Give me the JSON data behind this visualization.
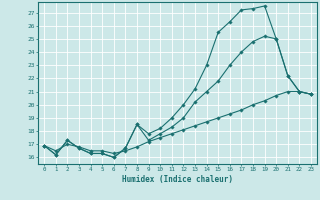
{
  "xlabel": "Humidex (Indice chaleur)",
  "xlim": [
    -0.5,
    23.5
  ],
  "ylim": [
    15.5,
    27.8
  ],
  "yticks": [
    16,
    17,
    18,
    19,
    20,
    21,
    22,
    23,
    24,
    25,
    26,
    27
  ],
  "xticks": [
    0,
    1,
    2,
    3,
    4,
    5,
    6,
    7,
    8,
    9,
    10,
    11,
    12,
    13,
    14,
    15,
    16,
    17,
    18,
    19,
    20,
    21,
    22,
    23
  ],
  "line_color": "#1a7070",
  "bg_color": "#cce8e8",
  "grid_color": "#ffffff",
  "line1_x": [
    0,
    1,
    2,
    3,
    4,
    5,
    6,
    7,
    8,
    9,
    10,
    11,
    12,
    13,
    14,
    15,
    16,
    17,
    18,
    19,
    20,
    21,
    22,
    23
  ],
  "line1_y": [
    16.9,
    16.2,
    17.3,
    16.7,
    16.3,
    16.3,
    16.0,
    16.7,
    18.5,
    17.8,
    18.2,
    19.0,
    20.0,
    21.2,
    23.0,
    25.5,
    26.3,
    27.2,
    27.3,
    27.5,
    25.0,
    22.2,
    21.0,
    20.8
  ],
  "line2_x": [
    0,
    1,
    2,
    3,
    4,
    5,
    6,
    7,
    8,
    9,
    10,
    11,
    12,
    13,
    14,
    15,
    16,
    17,
    18,
    19,
    20,
    21,
    22,
    23
  ],
  "line2_y": [
    16.9,
    16.2,
    17.3,
    16.7,
    16.3,
    16.3,
    16.0,
    16.7,
    18.5,
    17.3,
    17.8,
    18.3,
    19.0,
    20.2,
    21.0,
    21.8,
    23.0,
    24.0,
    24.8,
    25.2,
    25.0,
    22.2,
    21.0,
    20.8
  ],
  "line3_x": [
    0,
    1,
    2,
    3,
    4,
    5,
    6,
    7,
    8,
    9,
    10,
    11,
    12,
    13,
    14,
    15,
    16,
    17,
    18,
    19,
    20,
    21,
    22,
    23
  ],
  "line3_y": [
    16.9,
    16.5,
    17.0,
    16.8,
    16.5,
    16.5,
    16.3,
    16.5,
    16.8,
    17.2,
    17.5,
    17.8,
    18.1,
    18.4,
    18.7,
    19.0,
    19.3,
    19.6,
    20.0,
    20.3,
    20.7,
    21.0,
    21.0,
    20.8
  ]
}
